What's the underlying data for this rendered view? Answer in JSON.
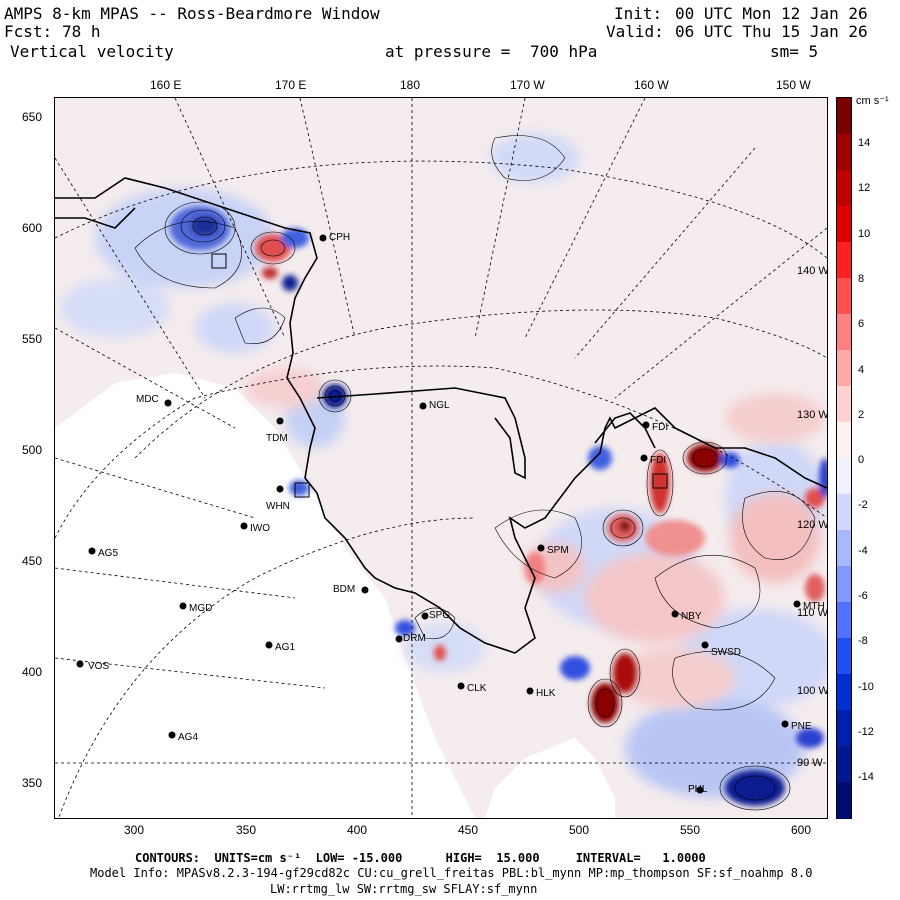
{
  "header": {
    "title": "AMPS 8-km MPAS -- Ross-Beardmore Window",
    "fcst_label": "Fcst:",
    "fcst_value": "78 h",
    "field": "Vertical velocity",
    "init_label": "Init:",
    "init_value": "00 UTC Mon 12 Jan 26",
    "valid_label": "Valid:",
    "valid_value": "06 UTC Thu 15 Jan 26",
    "pressure_label": "at pressure =",
    "pressure_value": "700 hPa",
    "smooth": "sm= 5"
  },
  "map": {
    "top_lon_labels": [
      "160 E",
      "170 E",
      "180",
      "170 W",
      "160 W",
      "150 W"
    ],
    "x_ticks": [
      "300",
      "350",
      "400",
      "450",
      "500",
      "550",
      "600"
    ],
    "y_ticks": [
      "650",
      "600",
      "550",
      "500",
      "450",
      "400",
      "350"
    ],
    "interior_labels": [
      "140 W",
      "130 W",
      "120 W",
      "110 W",
      "100 W",
      "90 W"
    ],
    "stations": [
      "CPH",
      "NGL",
      "TDM",
      "MDC",
      "WHN",
      "IWO",
      "AG5",
      "MGD",
      "AG1",
      "VOS",
      "AG4",
      "BDM",
      "SPG",
      "DRM",
      "SPM",
      "NBY",
      "SWSD",
      "PNE",
      "MTH",
      "FDI",
      "FDI",
      "HLK",
      "CLK",
      "PHL"
    ],
    "colors": {
      "positive_dark": "#8b0000",
      "positive": "#e03030",
      "positive_light": "#f8c8c8",
      "negative_dark": "#0a1a90",
      "negative": "#3050e0",
      "negative_light": "#c8d4f8",
      "neutral": "#f6eeee"
    }
  },
  "colorbar": {
    "units": "cm s⁻¹",
    "labels": [
      "14",
      "12",
      "10",
      "8",
      "6",
      "4",
      "2",
      "0",
      "-2",
      "-4",
      "-6",
      "-8",
      "-10",
      "-12",
      "-14"
    ],
    "colors": [
      "#7a0000",
      "#a00000",
      "#c00000",
      "#e00000",
      "#ff2020",
      "#ff5050",
      "#ff8080",
      "#ffa8a8",
      "#ffd0d0",
      "#fff0f0",
      "#f0f0ff",
      "#d0d8ff",
      "#a8b8ff",
      "#8098ff",
      "#5070ff",
      "#2050f0",
      "#0030d0",
      "#0020b0",
      "#001890",
      "#000c70"
    ]
  },
  "footer": {
    "line1": "CONTOURS:  UNITS=cm s⁻¹  LOW= -15.000      HIGH=  15.000     INTERVAL=   1.0000",
    "line2": "Model Info: MPASv8.2.3-194-gf29cd82c CU:cu_grell_freitas PBL:bl_mynn MP:mp_thompson SF:sf_noahmp 8.0",
    "line3": "LW:rrtmg_lw SW:rrtmg_sw SFLAY:sf_mynn"
  }
}
